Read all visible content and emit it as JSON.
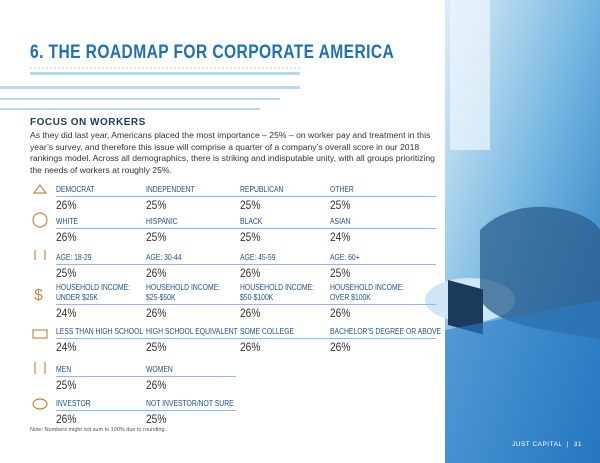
{
  "header": {
    "title": "6. THE ROADMAP FOR CORPORATE AMERICA"
  },
  "section": {
    "heading": "FOCUS ON WORKERS",
    "body": "As they did last year, Americans placed the most importance – 25% – on worker pay and treatment in this year’s survey, and therefore this issue will comprise a quarter of a company’s overall score in our 2018 rankings model. Across all demographics, there is striking and indisputable unity, with all groups prioritizing the needs of workers at roughly 25%."
  },
  "groups": [
    {
      "cells": [
        {
          "label": [
            "DEMOCRAT"
          ],
          "value": "26%"
        },
        {
          "label": [
            "INDEPENDENT"
          ],
          "value": "25%"
        },
        {
          "label": [
            "REPUBLICAN"
          ],
          "value": "25%"
        },
        {
          "label": [
            "OTHER"
          ],
          "value": "25%"
        }
      ]
    },
    {
      "cells": [
        {
          "label": [
            "WHITE"
          ],
          "value": "26%"
        },
        {
          "label": [
            "HISPANIC"
          ],
          "value": "25%"
        },
        {
          "label": [
            "BLACK"
          ],
          "value": "25%"
        },
        {
          "label": [
            "ASIAN"
          ],
          "value": "24%"
        }
      ]
    },
    {
      "cells": [
        {
          "label": [
            "AGE: 18-29"
          ],
          "value": "25%"
        },
        {
          "label": [
            "AGE: 30-44"
          ],
          "value": "26%"
        },
        {
          "label": [
            "AGE: 45-59"
          ],
          "value": "26%"
        },
        {
          "label": [
            "AGE: 60+"
          ],
          "value": "25%"
        }
      ]
    },
    {
      "cells": [
        {
          "label": [
            "HOUSEHOLD INCOME:",
            "UNDER $25K"
          ],
          "value": "24%"
        },
        {
          "label": [
            "HOUSEHOLD INCOME:",
            "$25-$50K"
          ],
          "value": "26%"
        },
        {
          "label": [
            "HOUSEHOLD INCOME:",
            "$50-$100K"
          ],
          "value": "26%"
        },
        {
          "label": [
            "HOUSEHOLD INCOME:",
            "OVER $100K"
          ],
          "value": "26%"
        }
      ]
    },
    {
      "cells": [
        {
          "label": [
            "LESS THAN HIGH SCHOOL"
          ],
          "value": "24%"
        },
        {
          "label": [
            "HIGH SCHOOL EQUIVALENT"
          ],
          "value": "25%"
        },
        {
          "label": [
            "SOME COLLEGE"
          ],
          "value": "26%"
        },
        {
          "label": [
            "BACHELOR’S DEGREE OR ABOVE"
          ],
          "value": "26%"
        }
      ]
    },
    {
      "cells": [
        {
          "label": [
            "MEN"
          ],
          "value": "25%"
        },
        {
          "label": [
            "WOMEN"
          ],
          "value": "26%"
        }
      ]
    },
    {
      "cells": [
        {
          "label": [
            "INVESTOR"
          ],
          "value": "26%"
        },
        {
          "label": [
            "NOT INVESTOR/NOT SURE"
          ],
          "value": "25%"
        }
      ]
    }
  ],
  "note": "Note: Numbers might not sum to 100% due to rounding.",
  "footer": {
    "brand": "JUST CAPITAL",
    "page": "31"
  }
}
